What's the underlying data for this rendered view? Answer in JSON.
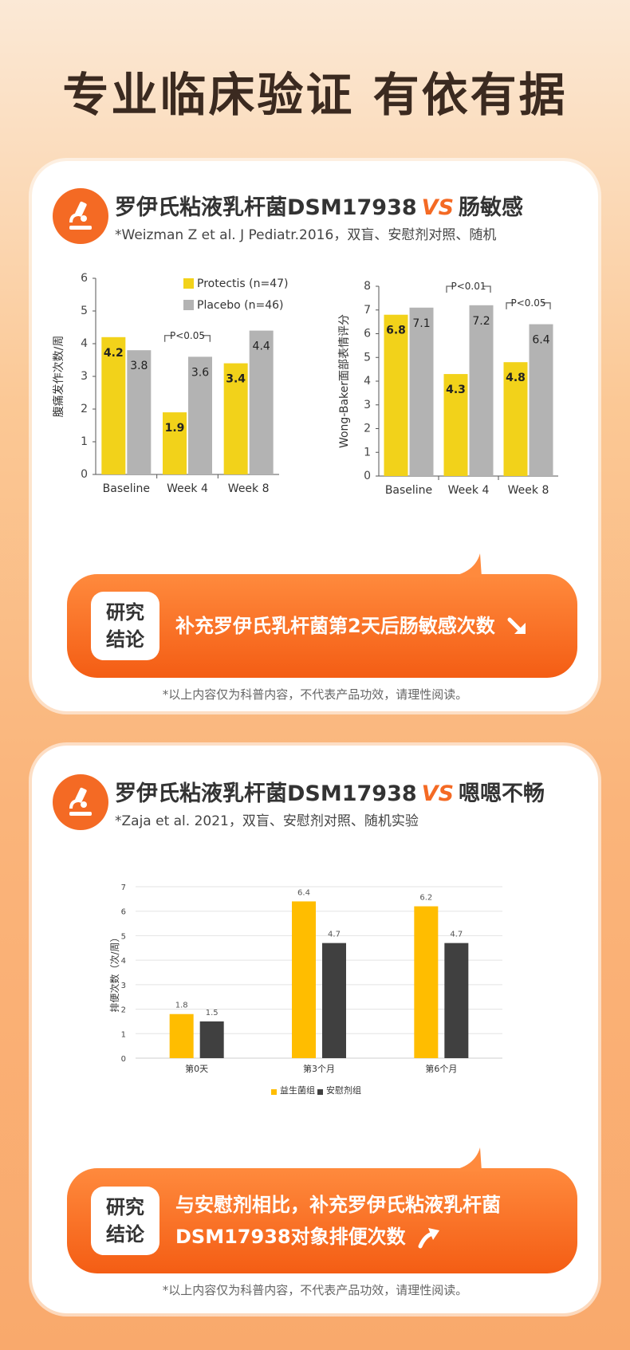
{
  "headline": "专业临床验证 有依有据",
  "card1": {
    "title_a": "罗伊氏粘液乳杆菌DSM17938",
    "vs": "VS",
    "title_b": "肠敏感",
    "reference": "*Weizman Z et al. J Pediatr.2016，双盲、安慰剂对照、随机",
    "conclusion_tag": [
      "研究",
      "结论"
    ],
    "conclusion_text": "补充罗伊氏乳杆菌第2天后肠敏感次数",
    "disclaimer": "*以上内容仅为科普内容，不代表产品功效，请理性阅读。"
  },
  "card2": {
    "title_a": "罗伊氏粘液乳杆菌DSM17938",
    "vs": "VS",
    "title_b": "嗯嗯不畅",
    "reference": "*Zaja et al. 2021，双盲、安慰剂对照、随机实验",
    "conclusion_tag": [
      "研究",
      "结论"
    ],
    "conclusion_text_1": "与安慰剂相比，补充罗伊氏粘液乳杆菌",
    "conclusion_text_2": "DSM17938对象排便次数",
    "disclaimer": "*以上内容仅为科普内容，不代表产品功效，请理性阅读。"
  },
  "colors": {
    "accent": "#f46a24",
    "yellow": "#f2d21a",
    "gray": "#b3b3b3",
    "gold": "#ffbd00",
    "dark": "#404040"
  },
  "chart_data": [
    {
      "type": "bar",
      "categories": [
        "Baseline",
        "Week 4",
        "Week 8"
      ],
      "series": [
        {
          "name": "Protectis (n=47)",
          "values": [
            4.2,
            1.9,
            3.4
          ]
        },
        {
          "name": "Placebo (n=46)",
          "values": [
            3.8,
            3.6,
            4.4
          ]
        }
      ],
      "ylabel": "腹痛发作次数/周",
      "ylim": [
        0,
        6
      ],
      "yticks": [
        "0",
        "1",
        "2",
        "3",
        "4",
        "5",
        "6"
      ],
      "annotations": [
        "P<0.05"
      ],
      "legend": "top"
    },
    {
      "type": "bar",
      "categories": [
        "Baseline",
        "Week 4",
        "Week 8"
      ],
      "series": [
        {
          "name": "Protectis",
          "values": [
            6.8,
            4.3,
            4.8
          ]
        },
        {
          "name": "Placebo",
          "values": [
            7.1,
            7.2,
            6.4
          ]
        }
      ],
      "ylabel": "Wong-Baker面部表情评分",
      "ylim": [
        0,
        8
      ],
      "yticks": [
        "0",
        "1",
        "2",
        "3",
        "4",
        "5",
        "6",
        "7",
        "8"
      ],
      "annotations": [
        "P<0.01",
        "P<0.05"
      ]
    },
    {
      "type": "bar",
      "categories": [
        "第0天",
        "第3个月",
        "第6个月"
      ],
      "series": [
        {
          "name": "益生菌组",
          "values": [
            1.8,
            6.4,
            6.2
          ]
        },
        {
          "name": "安慰剂组",
          "values": [
            1.5,
            4.7,
            4.7
          ]
        }
      ],
      "ylabel": "排便次数（次/周）",
      "ylim": [
        0,
        7
      ],
      "yticks": [
        "0",
        "1",
        "2",
        "3",
        "4",
        "5",
        "6",
        "7"
      ],
      "legend": "bottom"
    }
  ]
}
